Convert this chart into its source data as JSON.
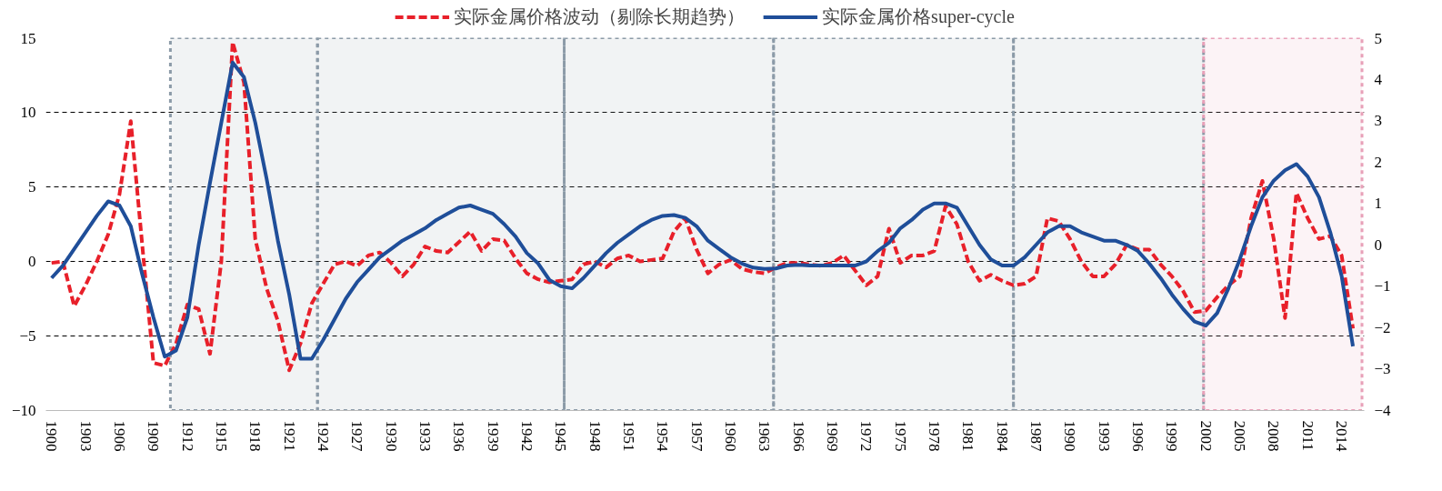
{
  "chart_data": {
    "type": "line",
    "x": [
      1900,
      1901,
      1902,
      1903,
      1904,
      1905,
      1906,
      1907,
      1908,
      1909,
      1910,
      1911,
      1912,
      1913,
      1914,
      1915,
      1916,
      1917,
      1918,
      1919,
      1920,
      1921,
      1922,
      1923,
      1924,
      1925,
      1926,
      1927,
      1928,
      1929,
      1930,
      1931,
      1932,
      1933,
      1934,
      1935,
      1936,
      1937,
      1938,
      1939,
      1940,
      1941,
      1942,
      1943,
      1944,
      1945,
      1946,
      1947,
      1948,
      1949,
      1950,
      1951,
      1952,
      1953,
      1954,
      1955,
      1956,
      1957,
      1958,
      1959,
      1960,
      1961,
      1962,
      1963,
      1964,
      1965,
      1966,
      1967,
      1968,
      1969,
      1970,
      1971,
      1972,
      1973,
      1974,
      1975,
      1976,
      1977,
      1978,
      1979,
      1980,
      1981,
      1982,
      1983,
      1984,
      1985,
      1986,
      1987,
      1988,
      1989,
      1990,
      1991,
      1992,
      1993,
      1994,
      1995,
      1996,
      1997,
      1998,
      1999,
      2000,
      2001,
      2002,
      2003,
      2004,
      2005,
      2006,
      2007,
      2008,
      2009,
      2010,
      2011,
      2012,
      2013,
      2014,
      2015
    ],
    "series": [
      {
        "name": "实际金属价格波动（剔除长期趋势）",
        "color": "#e8202a",
        "line_style": "dashed",
        "values": [
          -0.1,
          0,
          -3.0,
          -1.6,
          0,
          1.8,
          4.5,
          9.4,
          1.2,
          -6.8,
          -7,
          -5.5,
          -2.9,
          -3.2,
          -6.2,
          0,
          14.7,
          12,
          1.5,
          -1.8,
          -4,
          -7.3,
          -5.5,
          -2.8,
          -1.5,
          -0.2,
          0,
          -0.3,
          0.4,
          0.6,
          -0.1,
          -1.0,
          -0.2,
          1.0,
          0.7,
          0.6,
          1.3,
          2.0,
          0.7,
          1.5,
          1.4,
          0.2,
          -0.8,
          -1.2,
          -1.4,
          -1.3,
          -1.2,
          -0.2,
          0,
          -0.4,
          0.2,
          0.4,
          0,
          0.1,
          0.2,
          2.0,
          2.9,
          0.8,
          -0.8,
          -0.2,
          0.1,
          -0.5,
          -0.7,
          -0.8,
          -0.4,
          -0.1,
          -0.1,
          -0.2,
          -0.3,
          -0.1,
          0.4,
          -0.6,
          -1.6,
          -1.0,
          2.2,
          -0.1,
          0.4,
          0.4,
          0.7,
          3.7,
          2.5,
          0,
          -1.3,
          -0.9,
          -1.3,
          -1.6,
          -1.5,
          -1.0,
          2.9,
          2.7,
          1.5,
          0,
          -1.0,
          -1.0,
          -0.2,
          1.1,
          0.8,
          0.8,
          -0.2,
          -1.0,
          -2.0,
          -3.4,
          -3.3,
          -2.4,
          -1.6,
          -1.0,
          2.9,
          5.4,
          1.5,
          -3.8,
          4.6,
          2.9,
          1.5,
          1.7,
          0.4,
          -4.5
        ]
      },
      {
        "name": "实际金属价格super-cycle",
        "color": "#1f4e99",
        "line_style": "solid",
        "axis": "y2",
        "values": [
          -0.8,
          -0.5,
          -0.1,
          0.3,
          0.7,
          1.05,
          0.95,
          0.45,
          -0.7,
          -1.75,
          -2.7,
          -2.55,
          -1.75,
          0,
          1.5,
          2.95,
          4.4,
          4.05,
          2.95,
          1.6,
          0.1,
          -1.2,
          -2.75,
          -2.75,
          -2.3,
          -1.8,
          -1.3,
          -0.9,
          -0.6,
          -0.3,
          -0.1,
          0.1,
          0.25,
          0.4,
          0.6,
          0.75,
          0.9,
          0.95,
          0.85,
          0.75,
          0.5,
          0.2,
          -0.2,
          -0.45,
          -0.85,
          -1.0,
          -1.05,
          -0.8,
          -0.5,
          -0.2,
          0.05,
          0.25,
          0.45,
          0.6,
          0.7,
          0.72,
          0.65,
          0.45,
          0.1,
          -0.1,
          -0.3,
          -0.45,
          -0.55,
          -0.58,
          -0.57,
          -0.5,
          -0.48,
          -0.5,
          -0.5,
          -0.5,
          -0.5,
          -0.5,
          -0.4,
          -0.15,
          0.05,
          0.4,
          0.6,
          0.85,
          1.0,
          1.0,
          0.9,
          0.45,
          0,
          -0.35,
          -0.5,
          -0.5,
          -0.3,
          0,
          0.3,
          0.45,
          0.45,
          0.3,
          0.2,
          0.1,
          0.1,
          0,
          -0.15,
          -0.45,
          -0.8,
          -1.2,
          -1.55,
          -1.85,
          -1.95,
          -1.65,
          -1.05,
          -0.35,
          0.45,
          1.15,
          1.55,
          1.8,
          1.95,
          1.65,
          1.15,
          0.3,
          -0.75,
          -2.45
        ]
      }
    ],
    "xlim": [
      1899.5,
      2016
    ],
    "xticks": [
      1900,
      1903,
      1906,
      1909,
      1912,
      1915,
      1918,
      1921,
      1924,
      1927,
      1930,
      1933,
      1936,
      1939,
      1942,
      1945,
      1948,
      1951,
      1954,
      1957,
      1960,
      1963,
      1966,
      1969,
      1972,
      1975,
      1978,
      1981,
      1984,
      1987,
      1990,
      1993,
      1996,
      1999,
      2002,
      2005,
      2008,
      2011,
      2014
    ],
    "ylim": [
      -10,
      15
    ],
    "yticks": [
      {
        "value": -10,
        "label": "−10"
      },
      {
        "value": -5,
        "label": "−5"
      },
      0,
      5,
      10,
      15
    ],
    "y2lim": [
      -4,
      5
    ],
    "y2ticks": [
      {
        "value": -4,
        "label": "−4"
      },
      {
        "value": -3,
        "label": "−3"
      },
      {
        "value": -2,
        "label": "−2"
      },
      {
        "value": -1,
        "label": "−1"
      },
      0,
      1,
      2,
      3,
      4,
      5
    ],
    "bands": [
      {
        "axis": "x",
        "from": 1910.5,
        "to": 1923.5,
        "color": "#8c9ba8"
      },
      {
        "axis": "x",
        "from": 1923.5,
        "to": 1945.3,
        "color": "#8c9ba8"
      },
      {
        "axis": "x",
        "from": 1945.3,
        "to": 1963.8,
        "color": "#8c9ba8"
      },
      {
        "axis": "x",
        "from": 1963.8,
        "to": 1985,
        "color": "#8c9ba8"
      },
      {
        "axis": "x",
        "from": 1985,
        "to": 2001.8,
        "color": "#8c9ba8"
      },
      {
        "axis": "x",
        "from": 2001.8,
        "to": 2015.8,
        "color": "#e8a0b8"
      }
    ],
    "grid": "y",
    "legend": "top",
    "marker": "none"
  }
}
